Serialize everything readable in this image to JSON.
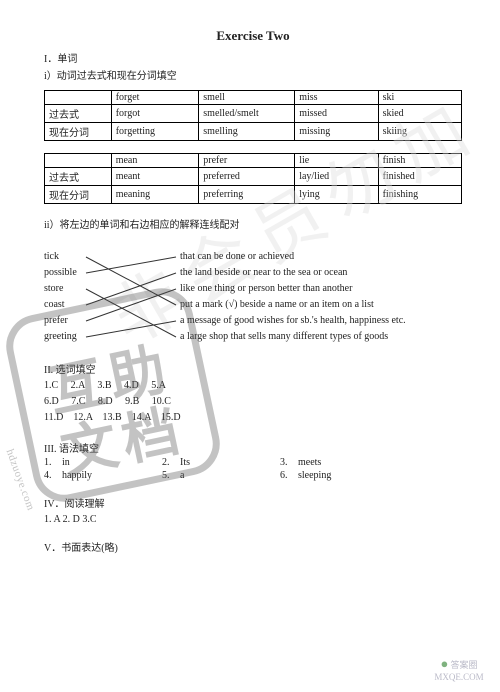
{
  "title": "Exercise Two",
  "sec1": "I．单词",
  "sec1a": "i）动词过去式和现在分词填空",
  "verb_tables": [
    {
      "rows": [
        [
          "",
          "forget",
          "smell",
          "miss",
          "ski"
        ],
        [
          "过去式",
          "forgot",
          "smelled/smelt",
          "missed",
          "skied"
        ],
        [
          "现在分词",
          "forgetting",
          "smelling",
          "missing",
          "skiing"
        ]
      ],
      "col_widths": [
        "16%",
        "21%",
        "23%",
        "20%",
        "20%"
      ]
    },
    {
      "rows": [
        [
          "",
          "mean",
          "prefer",
          "lie",
          "finish"
        ],
        [
          "过去式",
          "meant",
          "preferred",
          "lay/lied",
          "finished"
        ],
        [
          "现在分词",
          "meaning",
          "preferring",
          "lying",
          "finishing"
        ]
      ],
      "col_widths": [
        "16%",
        "21%",
        "23%",
        "20%",
        "20%"
      ]
    }
  ],
  "sec1b": "ii）将左边的单词和右边相应的解释连线配对",
  "match_left": [
    "tick",
    "possible",
    "store",
    "coast",
    "prefer",
    "greeting"
  ],
  "match_right": [
    "that can be done or achieved",
    "the land beside or near to the sea or ocean",
    "like one thing or person better than another",
    "put a mark (√) beside a name or an item on a list",
    "a message of good wishes for sb.'s health, happiness etc.",
    "a large shop that sells many different types of goods"
  ],
  "match_pairs": [
    [
      0,
      3
    ],
    [
      1,
      0
    ],
    [
      2,
      5
    ],
    [
      3,
      1
    ],
    [
      4,
      2
    ],
    [
      5,
      4
    ]
  ],
  "sec2": "II. 选词填空",
  "sec2_lines": [
    "1.C     2.A     3.B     4.D     5.A",
    "6.D     7.C     8.D     9.B     10.C",
    "11.D    12.A    13.B    14.A    15.D"
  ],
  "sec3": "III. 语法填空",
  "fill": [
    [
      "1.",
      "in",
      "2.",
      "Its",
      "3.",
      "meets"
    ],
    [
      "4.",
      "happily",
      "5.",
      "a",
      "6.",
      "sleeping"
    ]
  ],
  "sec4": "IV．阅读理解",
  "reading_ans": "1. A     2. D     3.C",
  "sec5": "V．书面表达(略)",
  "brand": {
    "text": "答案圈",
    "url": "MXQE.COM"
  },
  "stamp": {
    "line1": "互助",
    "line2": "文档",
    "url": "hdzuoye.com"
  },
  "watermark": "非会员勿加",
  "colors": {
    "text": "#222222",
    "stamp": "#555555",
    "wm": "#dddddd",
    "border": "#000000",
    "bg": "#ffffff"
  }
}
